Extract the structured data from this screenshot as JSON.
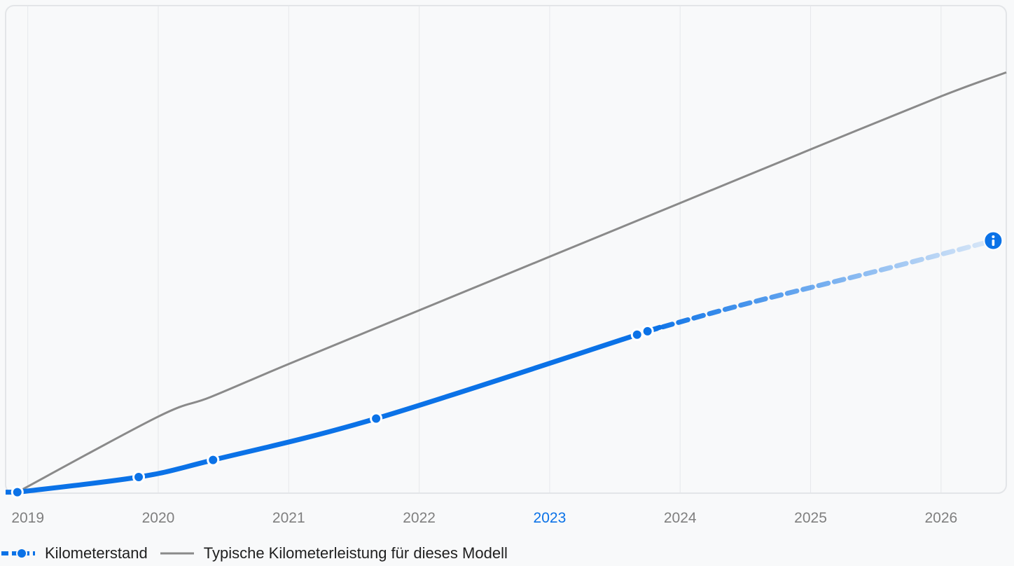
{
  "chart_data": {
    "type": "line",
    "x_unit": "year",
    "x_ticks": [
      "2019",
      "2020",
      "2021",
      "2022",
      "2023",
      "2024",
      "2025",
      "2026"
    ],
    "highlighted_tick": "2023",
    "xlim": [
      2018.83,
      2026.5
    ],
    "ylim": [
      0,
      100
    ],
    "grid": {
      "vertical": true,
      "horizontal": false
    },
    "legend_position": "bottom-left",
    "series": [
      {
        "name": "Kilometerstand",
        "color": "#0b72e7",
        "style": "solid-then-dashed-fading",
        "recorded_points": [
          {
            "x": 2018.92,
            "y": 0.2
          },
          {
            "x": 2019.85,
            "y": 3.3
          },
          {
            "x": 2020.42,
            "y": 6.8
          },
          {
            "x": 2021.67,
            "y": 15.3
          },
          {
            "x": 2023.67,
            "y": 32.5
          },
          {
            "x": 2023.75,
            "y": 33.2
          }
        ],
        "projection_points": [
          {
            "x": 2023.75,
            "y": 33.2
          },
          {
            "x": 2024.5,
            "y": 38.8
          },
          {
            "x": 2025.5,
            "y": 45.5
          },
          {
            "x": 2026.4,
            "y": 51.8
          }
        ],
        "info_marker": {
          "x": 2026.4,
          "y": 51.8,
          "icon": "info-icon",
          "color": "#0b72e7"
        }
      },
      {
        "name": "Typische Kilometerleistung für dieses Modell",
        "color": "#8a8a8a",
        "style": "solid",
        "points": [
          {
            "x": 2018.92,
            "y": 0.2
          },
          {
            "x": 2020.0,
            "y": 15.7
          },
          {
            "x": 2020.4,
            "y": 19.7
          },
          {
            "x": 2021.0,
            "y": 26.5
          },
          {
            "x": 2022.0,
            "y": 37.5
          },
          {
            "x": 2023.0,
            "y": 48.5
          },
          {
            "x": 2024.0,
            "y": 59.5
          },
          {
            "x": 2025.0,
            "y": 70.5
          },
          {
            "x": 2026.0,
            "y": 81.4
          },
          {
            "x": 2026.5,
            "y": 86.3
          }
        ]
      }
    ]
  }
}
